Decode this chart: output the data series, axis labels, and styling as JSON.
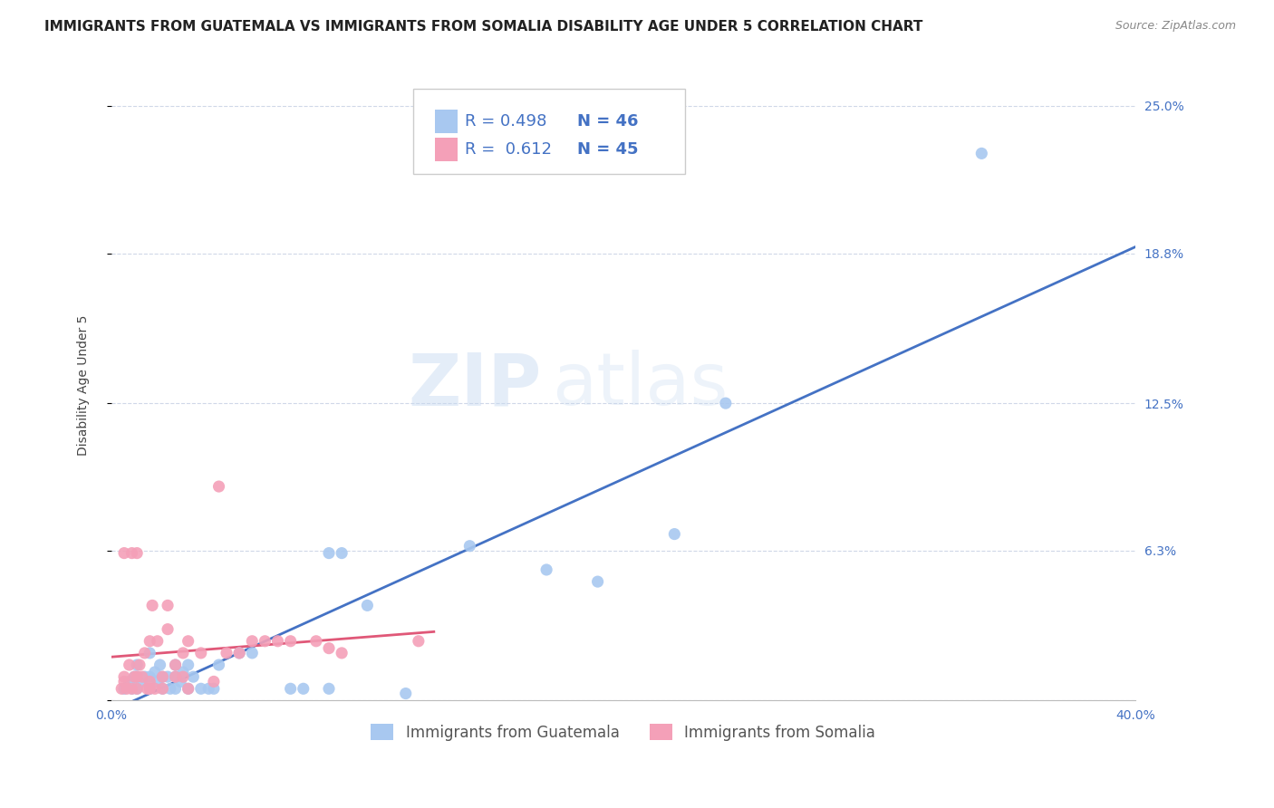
{
  "title": "IMMIGRANTS FROM GUATEMALA VS IMMIGRANTS FROM SOMALIA DISABILITY AGE UNDER 5 CORRELATION CHART",
  "source": "Source: ZipAtlas.com",
  "ylabel": "Disability Age Under 5",
  "yticks_right": [
    0.0,
    0.063,
    0.125,
    0.188,
    0.25
  ],
  "ytick_labels_right": [
    "",
    "6.3%",
    "12.5%",
    "18.8%",
    "25.0%"
  ],
  "xlim": [
    0.0,
    0.4
  ],
  "ylim": [
    0.0,
    0.265
  ],
  "R_guatemala": "0.498",
  "N_guatemala": "46",
  "R_somalia": "0.612",
  "N_somalia": "45",
  "color_guatemala": "#a8c8f0",
  "color_somalia": "#f4a0b8",
  "trend_color_guatemala": "#4472c4",
  "trend_color_somalia": "#e05878",
  "background_color": "#ffffff",
  "watermark_zip": "ZIP",
  "watermark_atlas": "atlas",
  "legend_label_guatemala": "Immigrants from Guatemala",
  "legend_label_somalia": "Immigrants from Somalia",
  "scatter_guatemala_x": [
    0.005,
    0.007,
    0.008,
    0.009,
    0.01,
    0.01,
    0.01,
    0.012,
    0.013,
    0.015,
    0.015,
    0.015,
    0.017,
    0.018,
    0.019,
    0.02,
    0.02,
    0.022,
    0.023,
    0.025,
    0.025,
    0.025,
    0.027,
    0.028,
    0.03,
    0.03,
    0.032,
    0.035,
    0.038,
    0.04,
    0.042,
    0.05,
    0.055,
    0.07,
    0.075,
    0.085,
    0.085,
    0.09,
    0.1,
    0.115,
    0.14,
    0.17,
    0.19,
    0.22,
    0.24,
    0.34
  ],
  "scatter_guatemala_y": [
    0.005,
    0.008,
    0.005,
    0.01,
    0.005,
    0.01,
    0.015,
    0.008,
    0.01,
    0.005,
    0.01,
    0.02,
    0.012,
    0.008,
    0.015,
    0.005,
    0.01,
    0.01,
    0.005,
    0.005,
    0.01,
    0.015,
    0.008,
    0.012,
    0.005,
    0.015,
    0.01,
    0.005,
    0.005,
    0.005,
    0.015,
    0.02,
    0.02,
    0.005,
    0.005,
    0.005,
    0.062,
    0.062,
    0.04,
    0.003,
    0.065,
    0.055,
    0.05,
    0.07,
    0.125,
    0.23
  ],
  "scatter_somalia_x": [
    0.004,
    0.005,
    0.005,
    0.005,
    0.006,
    0.007,
    0.008,
    0.008,
    0.009,
    0.01,
    0.01,
    0.01,
    0.011,
    0.012,
    0.013,
    0.014,
    0.015,
    0.015,
    0.015,
    0.016,
    0.017,
    0.018,
    0.02,
    0.02,
    0.022,
    0.022,
    0.025,
    0.025,
    0.028,
    0.028,
    0.03,
    0.03,
    0.035,
    0.04,
    0.042,
    0.045,
    0.05,
    0.055,
    0.06,
    0.065,
    0.07,
    0.08,
    0.085,
    0.09,
    0.12
  ],
  "scatter_somalia_y": [
    0.005,
    0.008,
    0.01,
    0.062,
    0.005,
    0.015,
    0.005,
    0.062,
    0.01,
    0.005,
    0.01,
    0.062,
    0.015,
    0.01,
    0.02,
    0.005,
    0.005,
    0.008,
    0.025,
    0.04,
    0.005,
    0.025,
    0.005,
    0.01,
    0.03,
    0.04,
    0.01,
    0.015,
    0.01,
    0.02,
    0.005,
    0.025,
    0.02,
    0.008,
    0.09,
    0.02,
    0.02,
    0.025,
    0.025,
    0.025,
    0.025,
    0.025,
    0.022,
    0.02,
    0.025
  ],
  "grid_color": "#d0d8e8",
  "title_fontsize": 11,
  "axis_label_fontsize": 10,
  "tick_fontsize": 10
}
